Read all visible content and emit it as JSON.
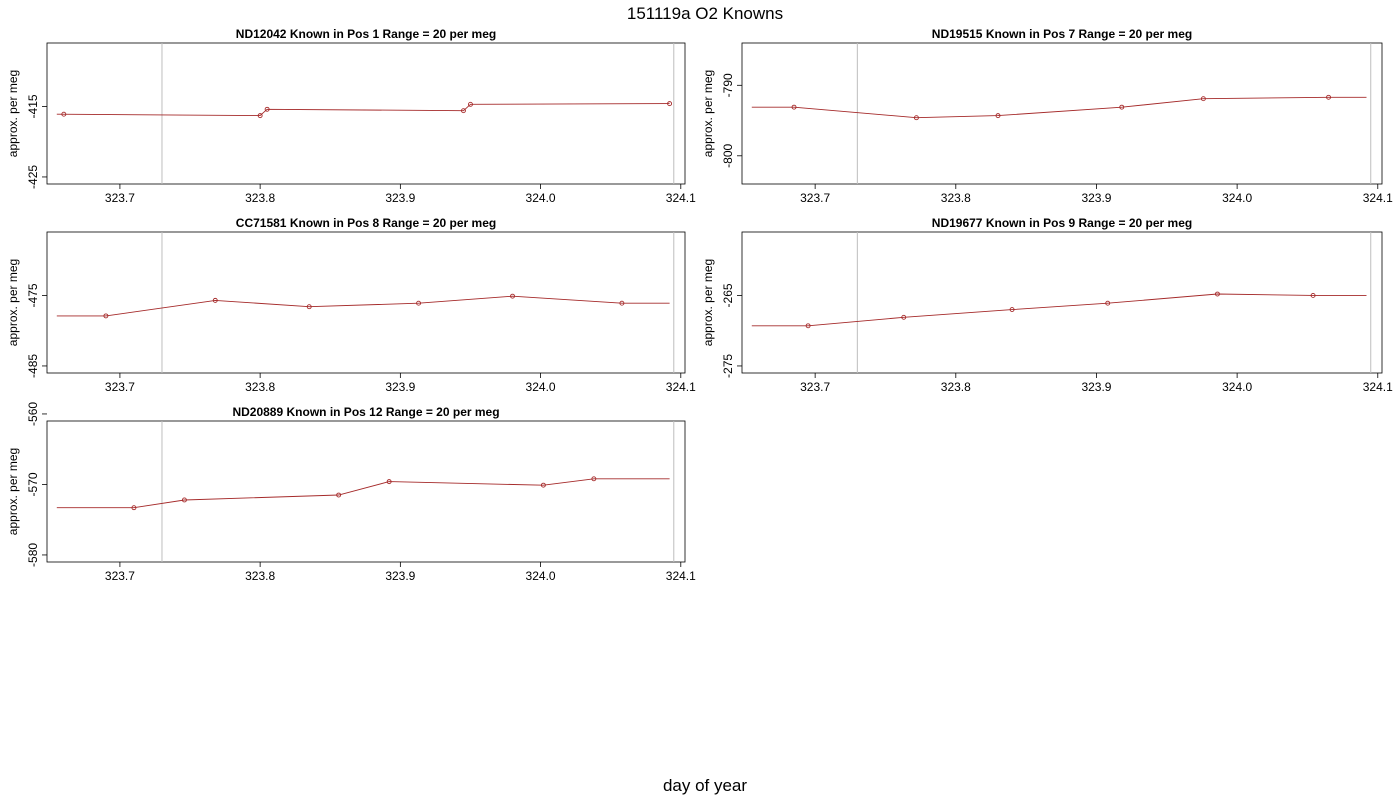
{
  "figure": {
    "title": "151119a   O2 Knowns",
    "xlabel": "day of year"
  },
  "chart_data": [
    {
      "type": "line",
      "title": "ND12042    Known in Pos 1          Range = 20 per meg",
      "ylabel": "approx. per meg",
      "xlim": [
        323.648,
        324.103
      ],
      "ylim": [
        -426,
        -406
      ],
      "xticks": [
        323.7,
        323.8,
        323.9,
        324.0,
        324.1
      ],
      "xtick_labels": [
        "323.7",
        "323.8",
        "323.9",
        "324.0",
        "324.1"
      ],
      "yticks": [
        -415,
        -425
      ],
      "ytick_labels": [
        "-415",
        "-425"
      ],
      "vlines": [
        323.73,
        324.095
      ],
      "line_x": [
        323.655,
        323.8,
        323.8,
        323.805,
        323.945,
        323.95,
        324.092
      ],
      "line_y": [
        -416.1,
        -416.3,
        -416.3,
        -415.4,
        -415.6,
        -414.7,
        -414.6
      ],
      "points_x": [
        323.66,
        323.8,
        323.805,
        323.945,
        323.95,
        324.092
      ],
      "points_y": [
        -416.1,
        -416.3,
        -415.4,
        -415.6,
        -414.7,
        -414.6
      ],
      "color": "#a52a2a"
    },
    {
      "type": "line",
      "title": "ND19515    Known in Pos 7          Range = 20 per meg",
      "ylabel": "approx. per meg",
      "xlim": [
        323.648,
        324.103
      ],
      "ylim": [
        -804,
        -784
      ],
      "xticks": [
        323.7,
        323.8,
        323.9,
        324.0,
        324.1
      ],
      "xtick_labels": [
        "323.7",
        "323.8",
        "323.9",
        "324.0",
        "324.1"
      ],
      "yticks": [
        -790,
        -800
      ],
      "ytick_labels": [
        "-790",
        "-800"
      ],
      "vlines": [
        323.73,
        324.095
      ],
      "line_x": [
        323.655,
        323.685,
        323.772,
        323.83,
        323.918,
        323.976,
        324.065,
        324.092
      ],
      "line_y": [
        -793.1,
        -793.1,
        -794.6,
        -794.3,
        -793.1,
        -791.9,
        -791.7,
        -791.7
      ],
      "points_x": [
        323.685,
        323.772,
        323.83,
        323.918,
        323.976,
        324.065
      ],
      "points_y": [
        -793.1,
        -794.6,
        -794.3,
        -793.1,
        -791.9,
        -791.7
      ],
      "color": "#a52a2a"
    },
    {
      "type": "line",
      "title": "CC71581    Known in Pos 8          Range = 20 per meg",
      "ylabel": "approx. per meg",
      "xlim": [
        323.648,
        324.103
      ],
      "ylim": [
        -486,
        -466
      ],
      "xticks": [
        323.7,
        323.8,
        323.9,
        324.0,
        324.1
      ],
      "xtick_labels": [
        "323.7",
        "323.8",
        "323.9",
        "324.0",
        "324.1"
      ],
      "yticks": [
        -475,
        -485
      ],
      "ytick_labels": [
        "-475",
        "-485"
      ],
      "vlines": [
        323.73,
        324.095
      ],
      "line_x": [
        323.655,
        323.69,
        323.768,
        323.835,
        323.913,
        323.98,
        324.058,
        324.092
      ],
      "line_y": [
        -477.9,
        -477.9,
        -475.7,
        -476.6,
        -476.1,
        -475.1,
        -476.1,
        -476.1
      ],
      "points_x": [
        323.69,
        323.768,
        323.835,
        323.913,
        323.98,
        324.058
      ],
      "points_y": [
        -477.9,
        -475.7,
        -476.6,
        -476.1,
        -475.1,
        -476.1
      ],
      "color": "#a52a2a"
    },
    {
      "type": "line",
      "title": "ND19677    Known in Pos 9          Range = 20 per meg",
      "ylabel": "approx. per meg",
      "xlim": [
        323.648,
        324.103
      ],
      "ylim": [
        -276,
        -256
      ],
      "xticks": [
        323.7,
        323.8,
        323.9,
        324.0,
        324.1
      ],
      "xtick_labels": [
        "323.7",
        "323.8",
        "323.9",
        "324.0",
        "324.1"
      ],
      "yticks": [
        -265,
        -275
      ],
      "ytick_labels": [
        "-265",
        "-275"
      ],
      "vlines": [
        323.73,
        324.095
      ],
      "line_x": [
        323.655,
        323.695,
        323.763,
        323.84,
        323.908,
        323.986,
        324.054,
        324.092
      ],
      "line_y": [
        -269.3,
        -269.3,
        -268.1,
        -267.0,
        -266.1,
        -264.8,
        -265.0,
        -265.0
      ],
      "points_x": [
        323.695,
        323.763,
        323.84,
        323.908,
        323.986,
        324.054
      ],
      "points_y": [
        -269.3,
        -268.1,
        -267.0,
        -266.1,
        -264.8,
        -265.0
      ],
      "color": "#a52a2a"
    },
    {
      "type": "line",
      "title": "ND20889    Known in Pos 12          Range = 20 per meg",
      "ylabel": "approx. per meg",
      "xlim": [
        323.648,
        324.103
      ],
      "ylim": [
        -581,
        -561
      ],
      "xticks": [
        323.7,
        323.8,
        323.9,
        324.0,
        324.1
      ],
      "xtick_labels": [
        "323.7",
        "323.8",
        "323.9",
        "324.0",
        "324.1"
      ],
      "yticks": [
        -560,
        -570,
        -580
      ],
      "ytick_labels": [
        "-560",
        "-570",
        "-580"
      ],
      "vlines": [
        323.73,
        324.095
      ],
      "line_x": [
        323.655,
        323.71,
        323.746,
        323.856,
        323.892,
        324.002,
        324.038,
        324.092
      ],
      "line_y": [
        -573.3,
        -573.3,
        -572.2,
        -571.5,
        -569.6,
        -570.1,
        -569.2,
        -569.2
      ],
      "points_x": [
        323.71,
        323.746,
        323.856,
        323.892,
        324.002,
        324.038
      ],
      "points_y": [
        -573.3,
        -572.2,
        -571.5,
        -569.6,
        -570.1,
        -569.2
      ],
      "color": "#a52a2a"
    }
  ]
}
